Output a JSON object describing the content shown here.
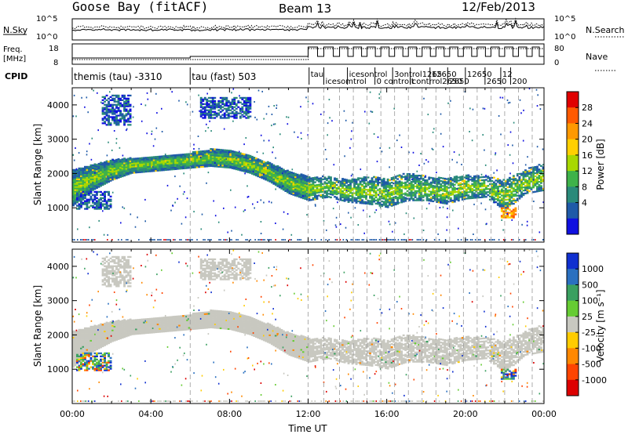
{
  "header": {
    "station": "Goose Bay (fitACF)",
    "beam": "Beam 13",
    "date": "12/Feb/2013"
  },
  "strips": {
    "nsky_label": "N.Sky",
    "nsky_ticks": [
      "10^5",
      "10^0"
    ],
    "nsearch_label": "N.Search",
    "nsearch_ticks": [
      "10^5",
      "10^0"
    ],
    "freq_label_1": "Freq.",
    "freq_label_2": "[MHz]",
    "freq_ticks": [
      "18",
      "8"
    ],
    "nave_label": "Nave",
    "nave_ticks": [
      "80",
      "0"
    ],
    "cpid_label": "CPID",
    "cpid_segments": [
      {
        "label": "themis (tau) -3310",
        "start": 0,
        "end": 6
      },
      {
        "label": "tau (fast) 503",
        "start": 6,
        "end": 12
      },
      {
        "label": "tau",
        "start": 12.05,
        "end": 12.8
      },
      {
        "label": "icesomtrol",
        "start": 12.8,
        "end": 14
      },
      {
        "label": "icesontrol",
        "start": 14,
        "end": 15.4
      },
      {
        "label": "0 controlt",
        "start": 15.4,
        "end": 16.3
      },
      {
        "label": "3ontrol1265",
        "start": 16.3,
        "end": 17.2
      },
      {
        "label": "contrrol2650",
        "start": 17.2,
        "end": 18.2
      },
      {
        "label": "12650",
        "start": 18.2,
        "end": 19.1
      },
      {
        "label": "2650",
        "start": 19.1,
        "end": 20
      },
      {
        "label": "12650",
        "start": 20,
        "end": 21
      },
      {
        "label": "2650",
        "start": 21,
        "end": 21.8
      },
      {
        "label": "12",
        "start": 21.8,
        "end": 22.3
      },
      {
        "label": "200",
        "start": 22.3,
        "end": 23.3
      }
    ]
  },
  "panels": {
    "power": {
      "ylabel": "Slant Range [km]",
      "cbar_label": "Power [dB]",
      "cbar_ticks": [
        "28",
        "24",
        "20",
        "16",
        "12",
        "8",
        "4"
      ],
      "cbar_colors": [
        "#e00000",
        "#ff5a00",
        "#ff9900",
        "#ffd000",
        "#a8d800",
        "#3fb24a",
        "#2a8a7a",
        "#1f5aa8",
        "#1010e0"
      ]
    },
    "velocity": {
      "ylabel": "Slant Range [km]",
      "cbar_label": "Velocity [m s⁻¹]",
      "cbar_ticks": [
        "1000",
        "500",
        "100",
        "25",
        "-25",
        "-100",
        "-500",
        "-1000"
      ],
      "cbar_colors": [
        "#1030d0",
        "#2a70c0",
        "#3aa060",
        "#66cc33",
        "#c8c8c0",
        "#ffcc00",
        "#ff8800",
        "#ff4400",
        "#dd0000"
      ]
    }
  },
  "xaxis": {
    "label": "Time UT",
    "ticks": [
      "00:00",
      "04:00",
      "08:00",
      "12:00",
      "16:00",
      "20:00",
      "00:00"
    ]
  },
  "chart_data": {
    "type": "heatmap",
    "title": "Goose Bay (fitACF)",
    "subtitle": "Beam 13 12/Feb/2013",
    "xlabel": "Time UT",
    "ylabel": "Slant Range [km]",
    "xlim": [
      0,
      24
    ],
    "ylim": [
      0,
      4500
    ],
    "x_tick_values": [
      0,
      4,
      8,
      12,
      16,
      20,
      24
    ],
    "y_tick_values": [
      1000,
      2000,
      3000,
      4000
    ],
    "grid": false,
    "mode_change_hours": [
      6,
      12,
      12.8,
      13.6,
      14.3,
      15.0,
      15.7,
      16.4,
      17.1,
      17.8,
      18.5,
      19.2,
      19.9,
      20.6,
      21.3,
      22.0,
      22.7,
      23.4
    ],
    "echo_band": [
      {
        "t": 0.0,
        "lo": 1050,
        "hi": 2100
      },
      {
        "t": 1.0,
        "lo": 1500,
        "hi": 2250
      },
      {
        "t": 2.0,
        "lo": 1800,
        "hi": 2400
      },
      {
        "t": 3.0,
        "lo": 2000,
        "hi": 2450
      },
      {
        "t": 4.0,
        "lo": 2050,
        "hi": 2500
      },
      {
        "t": 5.0,
        "lo": 2100,
        "hi": 2550
      },
      {
        "t": 6.0,
        "lo": 2150,
        "hi": 2600
      },
      {
        "t": 7.0,
        "lo": 2200,
        "hi": 2700
      },
      {
        "t": 8.0,
        "lo": 2150,
        "hi": 2650
      },
      {
        "t": 9.0,
        "lo": 2000,
        "hi": 2500
      },
      {
        "t": 10.0,
        "lo": 1750,
        "hi": 2300
      },
      {
        "t": 11.0,
        "lo": 1400,
        "hi": 2050
      },
      {
        "t": 12.0,
        "lo": 1200,
        "hi": 1900
      },
      {
        "t": 13.0,
        "lo": 1300,
        "hi": 1900
      },
      {
        "t": 14.0,
        "lo": 1150,
        "hi": 1800
      },
      {
        "t": 15.0,
        "lo": 1100,
        "hi": 1900
      },
      {
        "t": 16.0,
        "lo": 1000,
        "hi": 1850
      },
      {
        "t": 17.0,
        "lo": 1200,
        "hi": 2000
      },
      {
        "t": 18.0,
        "lo": 1200,
        "hi": 1900
      },
      {
        "t": 19.0,
        "lo": 1100,
        "hi": 1850
      },
      {
        "t": 20.0,
        "lo": 1250,
        "hi": 1950
      },
      {
        "t": 21.0,
        "lo": 1300,
        "hi": 1900
      },
      {
        "t": 22.0,
        "lo": 900,
        "hi": 1800
      },
      {
        "t": 23.0,
        "lo": 1400,
        "hi": 2100
      },
      {
        "t": 24.0,
        "lo": 1500,
        "hi": 2300
      }
    ],
    "patches": [
      {
        "t0": 0.2,
        "t1": 2.0,
        "lo": 950,
        "hi": 1450,
        "power": "low",
        "velocity": "positive"
      },
      {
        "t0": 1.5,
        "t1": 3.0,
        "lo": 3400,
        "hi": 4300,
        "power": "low",
        "velocity": "near-zero"
      },
      {
        "t0": 6.5,
        "t1": 9.0,
        "lo": 3600,
        "hi": 4200,
        "power": "low",
        "velocity": "near-zero"
      },
      {
        "t0": 21.8,
        "t1": 22.6,
        "lo": 700,
        "hi": 1000,
        "power": "high",
        "velocity": "positive"
      }
    ]
  }
}
